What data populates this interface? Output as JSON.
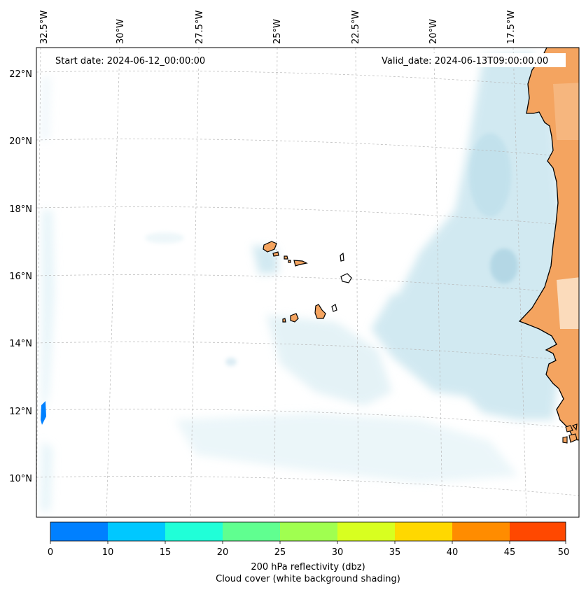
{
  "map": {
    "start_date": "Start date: 2024-06-12_00:00:00",
    "valid_date": "Valid_date: 2024-06-13T09:00:00.00",
    "lon_labels": [
      "32.5°W",
      "30°W",
      "27.5°W",
      "25°W",
      "22.5°W",
      "20°W",
      "17.5°W"
    ],
    "lat_labels": [
      "22°N",
      "20°N",
      "18°N",
      "16°N",
      "14°N",
      "12°N",
      "10°N"
    ]
  },
  "colorbar": {
    "ticks": [
      "0",
      "10",
      "15",
      "20",
      "25",
      "30",
      "35",
      "40",
      "45",
      "50"
    ],
    "colors": [
      "#0080ff",
      "#00c8ff",
      "#20ffd8",
      "#60ff90",
      "#a0ff50",
      "#d8ff20",
      "#ffd800",
      "#ff8c00",
      "#ff4800"
    ],
    "label_line1": "200 hPa reflectivity (dbz)",
    "label_line2": "Cloud cover (white background shading)"
  },
  "colors": {
    "land": "#f4a460",
    "cloud": "#add8e6",
    "echo": "#0080ff"
  }
}
